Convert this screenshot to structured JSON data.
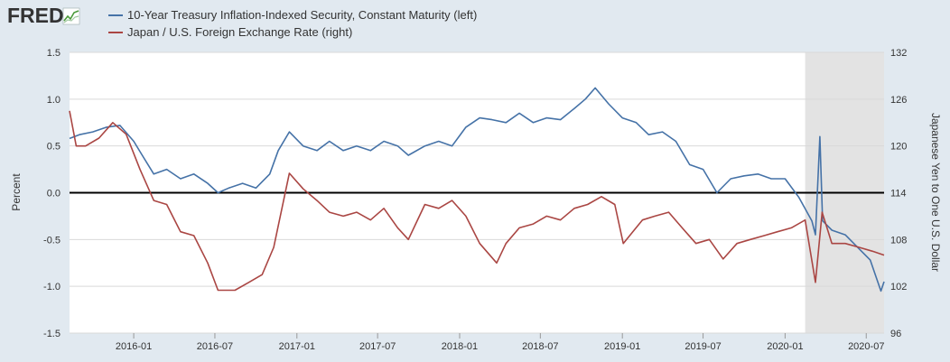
{
  "header": {
    "logo_text": "FRED"
  },
  "legend": [
    {
      "label": "10-Year Treasury Inflation-Indexed Security, Constant Maturity (left)",
      "color": "#4572a7"
    },
    {
      "label": "Japan / U.S. Foreign Exchange Rate (right)",
      "color": "#aa4643"
    }
  ],
  "chart_data": {
    "type": "line",
    "ylabel_left": "Percent",
    "ylabel_right": "Japanese Yen to One U.S. Dollar",
    "ylim_left": [
      -1.5,
      1.5
    ],
    "ylim_right": [
      96,
      132
    ],
    "yticks_left": [
      "1.5",
      "1.0",
      "0.5",
      "0.0",
      "-0.5",
      "-1.0",
      "-1.5"
    ],
    "yticks_right": [
      "132",
      "126",
      "120",
      "114",
      "108",
      "102",
      "96"
    ],
    "xticks": [
      "2016-01",
      "2016-07",
      "2017-01",
      "2017-07",
      "2018-01",
      "2018-07",
      "2019-01",
      "2019-07",
      "2020-01",
      "2020-07"
    ],
    "xlim": [
      "2015-08-10",
      "2020-08-10"
    ],
    "recession": {
      "start": "2020-02-15",
      "end": "2020-08-10",
      "color": "#e3e3e3"
    },
    "zero_line": true,
    "series": [
      {
        "name": "10-Year Treasury Inflation-Indexed Security, Constant Maturity (left)",
        "color": "#4572a7",
        "axis": "left",
        "x": [
          "2015-08-10",
          "2015-09-01",
          "2015-10-01",
          "2015-11-01",
          "2015-12-01",
          "2016-01-01",
          "2016-01-20",
          "2016-02-15",
          "2016-03-15",
          "2016-04-15",
          "2016-05-15",
          "2016-06-15",
          "2016-07-08",
          "2016-08-01",
          "2016-09-01",
          "2016-10-01",
          "2016-11-01",
          "2016-11-20",
          "2016-12-15",
          "2017-01-15",
          "2017-02-15",
          "2017-03-15",
          "2017-04-15",
          "2017-05-15",
          "2017-06-15",
          "2017-07-15",
          "2017-08-15",
          "2017-09-08",
          "2017-10-15",
          "2017-11-15",
          "2017-12-15",
          "2018-01-15",
          "2018-02-15",
          "2018-03-15",
          "2018-04-15",
          "2018-05-15",
          "2018-06-15",
          "2018-07-15",
          "2018-08-15",
          "2018-09-15",
          "2018-10-10",
          "2018-11-01",
          "2018-12-01",
          "2019-01-01",
          "2019-02-01",
          "2019-03-01",
          "2019-04-01",
          "2019-05-01",
          "2019-06-01",
          "2019-07-01",
          "2019-08-01",
          "2019-09-01",
          "2019-10-01",
          "2019-11-01",
          "2019-12-01",
          "2020-01-01",
          "2020-02-01",
          "2020-03-01",
          "2020-03-09",
          "2020-03-19",
          "2020-03-25",
          "2020-04-15",
          "2020-05-15",
          "2020-06-15",
          "2020-07-10",
          "2020-08-03",
          "2020-08-10"
        ],
        "values": [
          0.58,
          0.62,
          0.65,
          0.7,
          0.72,
          0.55,
          0.4,
          0.2,
          0.25,
          0.15,
          0.2,
          0.1,
          0.0,
          0.05,
          0.1,
          0.05,
          0.2,
          0.45,
          0.65,
          0.5,
          0.45,
          0.55,
          0.45,
          0.5,
          0.45,
          0.55,
          0.5,
          0.4,
          0.5,
          0.55,
          0.5,
          0.7,
          0.8,
          0.78,
          0.75,
          0.85,
          0.75,
          0.8,
          0.78,
          0.9,
          1.0,
          1.12,
          0.95,
          0.8,
          0.75,
          0.62,
          0.65,
          0.55,
          0.3,
          0.25,
          0.0,
          0.15,
          0.18,
          0.2,
          0.15,
          0.15,
          -0.05,
          -0.3,
          -0.45,
          0.6,
          -0.3,
          -0.4,
          -0.45,
          -0.6,
          -0.72,
          -1.05,
          -0.95
        ]
      },
      {
        "name": "Japan / U.S. Foreign Exchange Rate (right)",
        "color": "#aa4643",
        "axis": "right",
        "x": [
          "2015-08-10",
          "2015-08-25",
          "2015-09-15",
          "2015-10-15",
          "2015-11-15",
          "2015-12-15",
          "2016-01-15",
          "2016-02-15",
          "2016-03-15",
          "2016-04-15",
          "2016-05-15",
          "2016-06-15",
          "2016-07-08",
          "2016-08-15",
          "2016-09-15",
          "2016-10-15",
          "2016-11-10",
          "2016-12-15",
          "2017-01-15",
          "2017-02-15",
          "2017-03-15",
          "2017-04-15",
          "2017-05-15",
          "2017-06-15",
          "2017-07-15",
          "2017-08-15",
          "2017-09-08",
          "2017-10-15",
          "2017-11-15",
          "2017-12-15",
          "2018-01-15",
          "2018-02-15",
          "2018-03-25",
          "2018-04-15",
          "2018-05-15",
          "2018-06-15",
          "2018-07-15",
          "2018-08-15",
          "2018-09-15",
          "2018-10-15",
          "2018-11-15",
          "2018-12-15",
          "2019-01-03",
          "2019-02-15",
          "2019-03-15",
          "2019-04-15",
          "2019-05-15",
          "2019-06-15",
          "2019-07-15",
          "2019-08-15",
          "2019-09-15",
          "2019-10-15",
          "2019-11-15",
          "2019-12-15",
          "2020-01-15",
          "2020-02-15",
          "2020-03-09",
          "2020-03-24",
          "2020-04-15",
          "2020-05-15",
          "2020-06-15",
          "2020-07-15",
          "2020-08-10"
        ],
        "values": [
          124.5,
          120.0,
          120.0,
          121.0,
          123.0,
          121.5,
          117.0,
          113.0,
          112.5,
          109.0,
          108.5,
          105.0,
          101.5,
          101.5,
          102.5,
          103.5,
          107.0,
          116.5,
          114.5,
          113.0,
          111.5,
          111.0,
          111.5,
          110.5,
          112.0,
          109.5,
          108.0,
          112.5,
          112.0,
          113.0,
          111.0,
          107.5,
          105.0,
          107.5,
          109.5,
          110.0,
          111.0,
          110.5,
          112.0,
          112.5,
          113.5,
          112.5,
          107.5,
          110.5,
          111.0,
          111.5,
          109.5,
          107.5,
          108.0,
          105.5,
          107.5,
          108.0,
          108.5,
          109.0,
          109.5,
          110.5,
          102.5,
          111.5,
          107.5,
          107.5,
          107.0,
          106.5,
          106.0
        ]
      }
    ]
  }
}
